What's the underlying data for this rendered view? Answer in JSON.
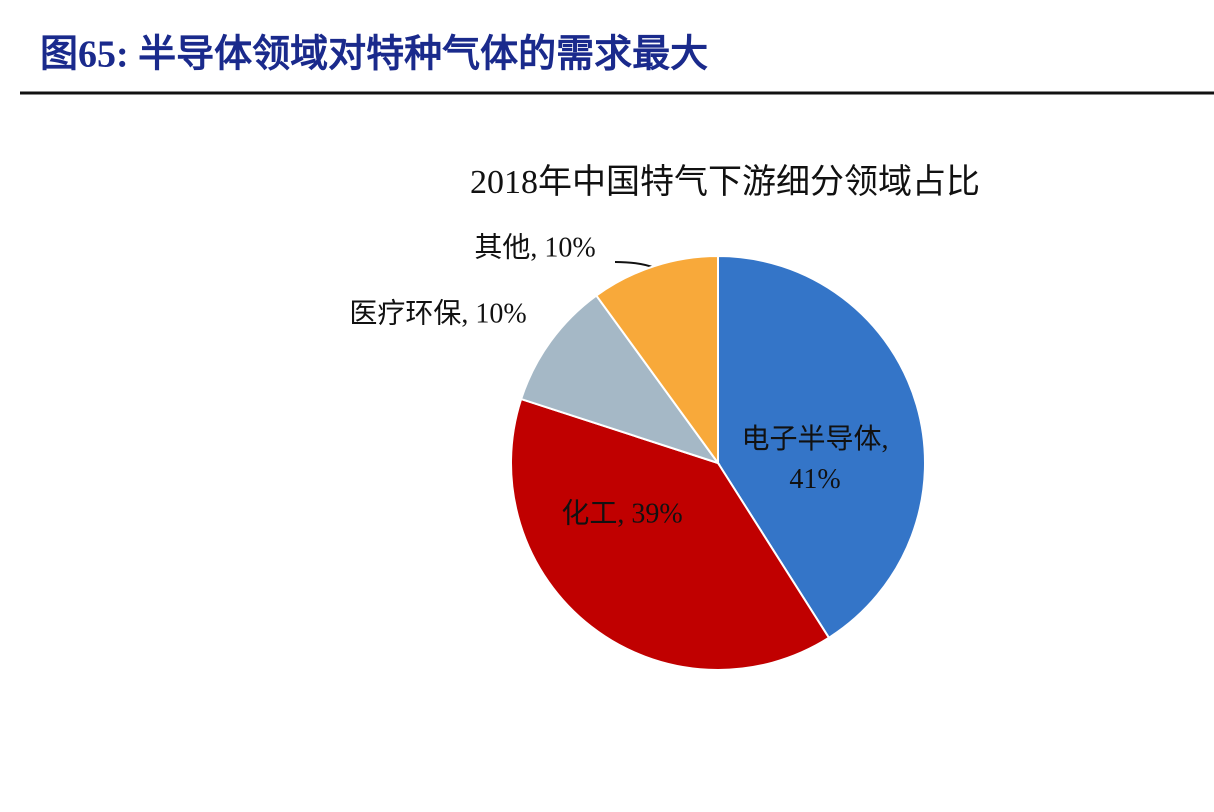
{
  "figure_title": "图65:  半导体领域对特种气体的需求最大",
  "chart_data": {
    "type": "pie",
    "title": "2018年中国特气下游细分领域占比",
    "values": [
      41,
      39,
      10,
      10
    ],
    "value_labels": [
      "电子半导体, 41%",
      "化工, 39%",
      "医疗环保, 10%",
      "其他, 10%"
    ],
    "colors": [
      "#3475c8",
      "#c00000",
      "#a5b8c6",
      "#f8a93a"
    ],
    "start_angle": 90,
    "direction": "clockwise"
  }
}
